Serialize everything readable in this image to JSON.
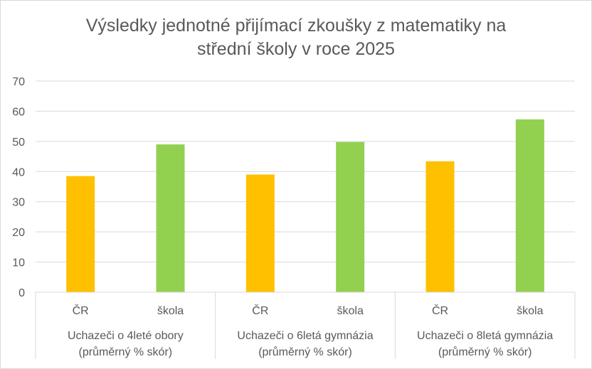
{
  "chart_data": {
    "type": "bar",
    "title_lines": [
      "Výsledky jednotné přijímací zkoušky z matematiky na",
      "střední školy v roce 2025"
    ],
    "groups": [
      {
        "lines": [
          "Uchazeči o 4leté obory",
          "(průměrný % skór)"
        ],
        "categories": [
          "ČR",
          "škola"
        ],
        "values": [
          38.5,
          49
        ]
      },
      {
        "lines": [
          "Uchazeči o 6letá gymnázia",
          "(průměrný % skór)"
        ],
        "categories": [
          "ČR",
          "škola"
        ],
        "values": [
          39,
          49.8
        ]
      },
      {
        "lines": [
          "Uchazeči o 8letá gymnázia",
          "(průměrný % skór)"
        ],
        "categories": [
          "ČR",
          "škola"
        ],
        "values": [
          43.4,
          57.3
        ]
      }
    ],
    "bar_colors": [
      "#ffc000",
      "#92d050"
    ],
    "ylim": [
      0,
      70
    ],
    "yticks": [
      0,
      10,
      20,
      30,
      40,
      50,
      60,
      70
    ],
    "grid": true,
    "legend": "none"
  }
}
